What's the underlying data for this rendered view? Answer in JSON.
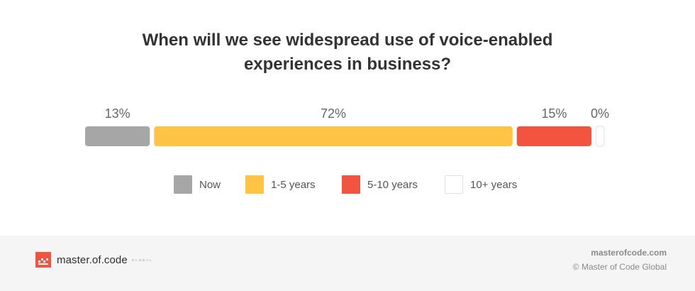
{
  "title": "When will we see widespread use of voice-enabled\nexperiences in business?",
  "chart_data": {
    "type": "bar",
    "orientation": "horizontal-stacked",
    "categories": [
      "Now",
      "1-5 years",
      "5-10 years",
      "10+ years"
    ],
    "values": [
      13,
      72,
      15,
      0
    ],
    "value_labels": [
      "13%",
      "72%",
      "15%",
      "0%"
    ],
    "colors": [
      "#a6a6a6",
      "#ffc444",
      "#f2543f",
      "#ffffff"
    ],
    "legend_position": "bottom",
    "grid": false
  },
  "legend": [
    {
      "label": "Now",
      "color": "#a6a6a6"
    },
    {
      "label": "1-5 years",
      "color": "#ffc444"
    },
    {
      "label": "5-10 years",
      "color": "#f2543f"
    },
    {
      "label": "10+ years",
      "color": "#ffffff"
    }
  ],
  "footer": {
    "logo_text": "master.of.code",
    "logo_sub": "GLOBAL",
    "site": "masterofcode.com",
    "copyright": "© Master of Code Global"
  },
  "icons": {
    "logo": "master-of-code-logo-icon"
  },
  "colors": {
    "footer_bg": "#f5f5f5",
    "brand": "#f2543f"
  }
}
